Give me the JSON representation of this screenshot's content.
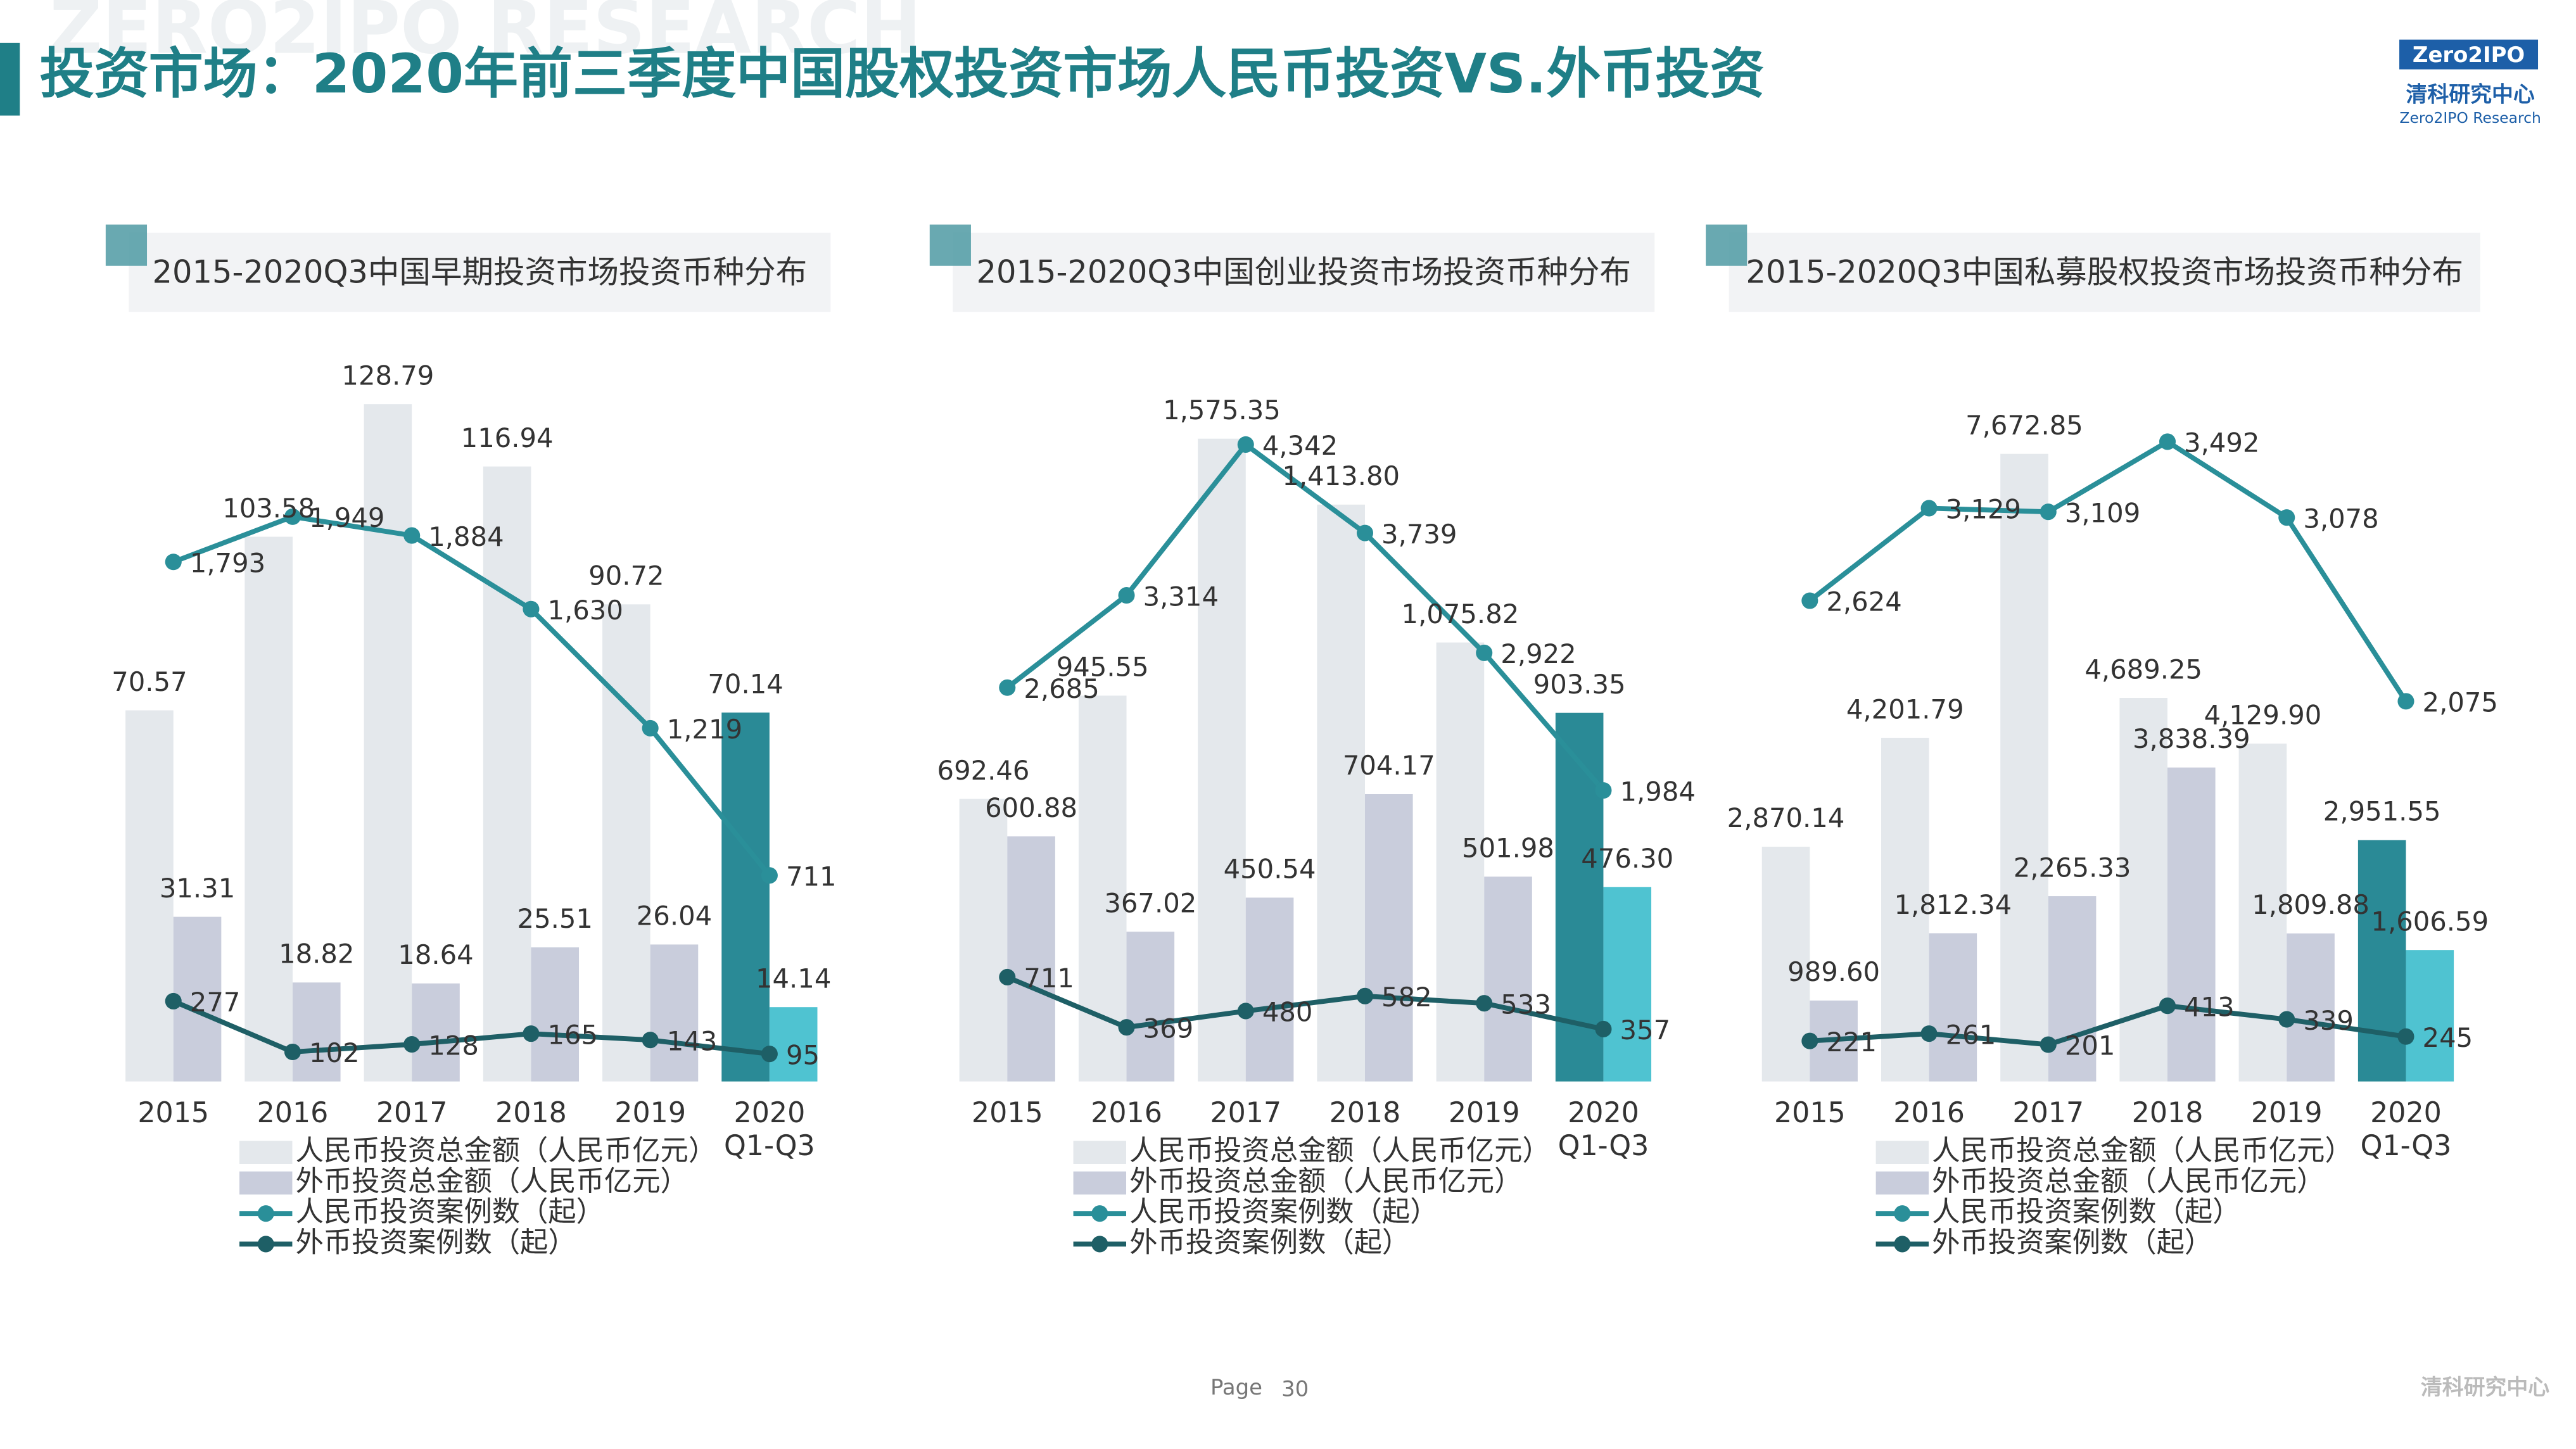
{
  "header": {
    "title": "投资市场：2020年前三季度中国股权投资市场人民币投资VS.外币投资",
    "watermark": "ZERO2IPO RESEARCH",
    "logo_brand": "Zero2IPO",
    "logo_cn": "清科研究中心",
    "logo_en": "Zero2IPO Research"
  },
  "chart_data": [
    {
      "type": "combo",
      "title": "2015-2020Q3中国早期投资市场投资币种分布",
      "categories": [
        "2015",
        "2016",
        "2017",
        "2018",
        "2019",
        "2020 Q1-Q3"
      ],
      "ylim": [
        0,
        135
      ],
      "y2lim": [
        0,
        2450
      ],
      "series": [
        {
          "name": "人民币投资总金额（人民币亿元）",
          "type": "bar",
          "color": "#e4e8ec",
          "highlight_color": "#2a8a96",
          "values": [
            70.57,
            103.58,
            128.79,
            116.94,
            90.72,
            70.14
          ],
          "value_labels": [
            "70.57",
            "103.58",
            "128.79",
            "116.94",
            "90.72",
            "70.14"
          ]
        },
        {
          "name": "外币投资总金额（人民币亿元）",
          "type": "bar",
          "color": "#c9cddc",
          "highlight_color": "#4fc3d1",
          "values": [
            31.31,
            18.82,
            18.64,
            25.51,
            26.04,
            14.14
          ],
          "value_labels": [
            "31.31",
            "18.82",
            "18.64",
            "25.51",
            "26.04",
            "14.14"
          ]
        },
        {
          "name": "人民币投资案例数（起）",
          "type": "line",
          "axis": "y2",
          "color": "#2a8f99",
          "values": [
            1793,
            1949,
            1884,
            1630,
            1219,
            711
          ],
          "value_labels": [
            "1,793",
            "1,949",
            "1,884",
            "1,630",
            "1,219",
            "711"
          ]
        },
        {
          "name": "外币投资案例数（起）",
          "type": "line",
          "axis": "y2",
          "color": "#1e5f66",
          "values": [
            277,
            102,
            128,
            165,
            143,
            95
          ],
          "value_labels": [
            "277",
            "102",
            "128",
            "165",
            "143",
            "95"
          ]
        }
      ]
    },
    {
      "type": "combo",
      "title": "2015-2020Q3中国创业投资市场投资币种分布",
      "categories": [
        "2015",
        "2016",
        "2017",
        "2018",
        "2019",
        "2020 Q1-Q3"
      ],
      "ylim": [
        0,
        1740
      ],
      "y2lim": [
        0,
        4840
      ],
      "series": [
        {
          "name": "人民币投资总金额（人民币亿元）",
          "type": "bar",
          "color": "#e4e8ec",
          "highlight_color": "#2a8a96",
          "values": [
            692.46,
            945.55,
            1575.35,
            1413.8,
            1075.82,
            903.35
          ],
          "value_labels": [
            "692.46",
            "945.55",
            "1,575.35",
            "1,413.80",
            "1,075.82",
            "903.35"
          ]
        },
        {
          "name": "外币投资总金额（人民币亿元）",
          "type": "bar",
          "color": "#c9cddc",
          "highlight_color": "#4fc3d1",
          "values": [
            600.88,
            367.02,
            450.54,
            704.17,
            501.98,
            476.3
          ],
          "value_labels": [
            "600.88",
            "367.02",
            "450.54",
            "704.17",
            "501.98",
            "476.30"
          ]
        },
        {
          "name": "人民币投资案例数（起）",
          "type": "line",
          "axis": "y2",
          "color": "#2a8f99",
          "values": [
            2685,
            3314,
            4342,
            3739,
            2922,
            1984
          ],
          "value_labels": [
            "2,685",
            "3,314",
            "4,342",
            "3,739",
            "2,922",
            "1,984"
          ]
        },
        {
          "name": "外币投资案例数（起）",
          "type": "line",
          "axis": "y2",
          "color": "#1e5f66",
          "values": [
            711,
            369,
            480,
            582,
            533,
            357
          ],
          "value_labels": [
            "711",
            "369",
            "480",
            "582",
            "533",
            "357"
          ]
        }
      ]
    },
    {
      "type": "combo",
      "title": "2015-2020Q3中国私募股权投资市场投资币种分布",
      "categories": [
        "2015",
        "2016",
        "2017",
        "2018",
        "2019",
        "2020 Q1-Q3"
      ],
      "ylim": [
        0,
        8680
      ],
      "y2lim": [
        0,
        3875
      ],
      "series": [
        {
          "name": "人民币投资总金额（人民币亿元）",
          "type": "bar",
          "color": "#e4e8ec",
          "highlight_color": "#2a8a96",
          "values": [
            2870.14,
            4201.79,
            7672.85,
            4689.25,
            4129.9,
            2951.55
          ],
          "value_labels": [
            "2,870.14",
            "4,201.79",
            "7,672.85",
            "4,689.25",
            "4,129.90",
            "2,951.55"
          ]
        },
        {
          "name": "外币投资总金额（人民币亿元）",
          "type": "bar",
          "color": "#c9cddc",
          "highlight_color": "#4fc3d1",
          "values": [
            989.6,
            1812.34,
            2265.33,
            3838.39,
            1809.88,
            1606.59
          ],
          "value_labels": [
            "989.60",
            "1,812.34",
            "2,265.33",
            "3,838.39",
            "1,809.88",
            "1,606.59"
          ]
        },
        {
          "name": "人民币投资案例数（起）",
          "type": "line",
          "axis": "y2",
          "color": "#2a8f99",
          "values": [
            2624,
            3129,
            3109,
            3492,
            3078,
            2075
          ],
          "value_labels": [
            "2,624",
            "3,129",
            "3,109",
            "3,492",
            "3,078",
            "2,075"
          ]
        },
        {
          "name": "外币投资案例数（起）",
          "type": "line",
          "axis": "y2",
          "color": "#1e5f66",
          "values": [
            221,
            261,
            201,
            413,
            339,
            245
          ],
          "value_labels": [
            "221",
            "261",
            "201",
            "413",
            "339",
            "245"
          ]
        }
      ]
    }
  ],
  "footer": {
    "page_label": "Page",
    "page_number": "30",
    "brand": "清科研究中心"
  }
}
